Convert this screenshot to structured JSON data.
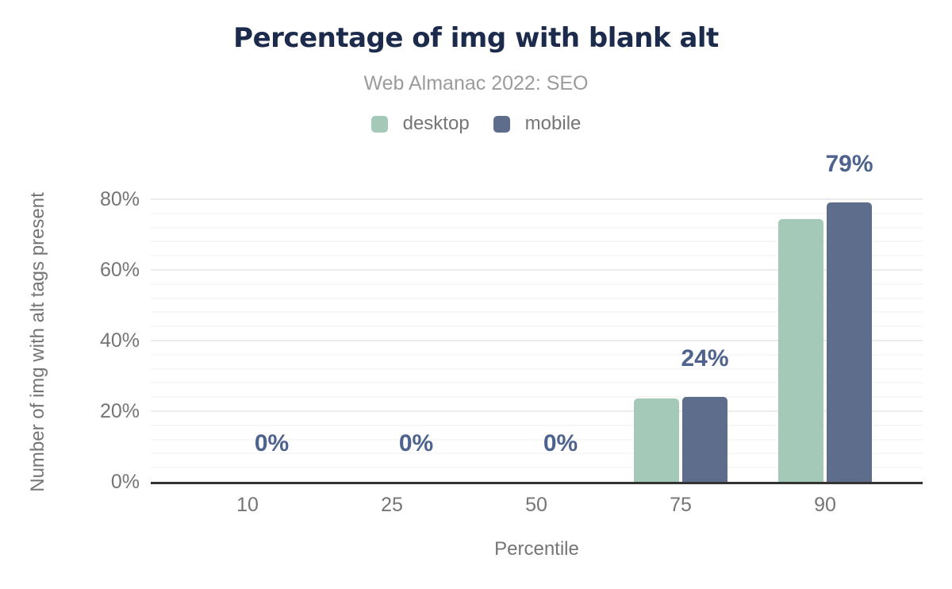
{
  "chart": {
    "title": "Percentage of img with blank alt",
    "subtitle": "Web Almanac 2022: SEO",
    "x_axis_title": "Percentile",
    "y_axis_title": "Number of img with alt tags present"
  },
  "colors": {
    "title": "#1c2a4c",
    "subtitle": "#9b9b9b",
    "axis_text": "#757575",
    "desktop": "#a5c9b8",
    "mobile": "#5e6d8b",
    "data_label": "#4d628c",
    "axis_line": "#333333",
    "grid_major": "#ececec",
    "grid_minor": "#f7f7f7",
    "background": "#ffffff"
  },
  "chart_data": {
    "type": "bar",
    "title": "Percentage of img with blank alt",
    "subtitle": "Web Almanac 2022: SEO",
    "categories": [
      "10",
      "25",
      "50",
      "75",
      "90"
    ],
    "series": [
      {
        "name": "desktop",
        "color": "#a5c9b8",
        "values": [
          0,
          0,
          0,
          23.5,
          74.5
        ]
      },
      {
        "name": "mobile",
        "color": "#5e6d8b",
        "values": [
          0,
          0,
          0,
          24,
          79
        ]
      }
    ],
    "data_labels": [
      "0%",
      "0%",
      "0%",
      "24%",
      "79%"
    ],
    "data_labels_follow_series": "mobile",
    "xlabel": "Percentile",
    "ylabel": "Number of img with alt tags present",
    "y_ticks": [
      {
        "value": 0,
        "label": "0%"
      },
      {
        "value": 20,
        "label": "20%"
      },
      {
        "value": 40,
        "label": "40%"
      },
      {
        "value": 60,
        "label": "60%"
      },
      {
        "value": 80,
        "label": "80%"
      }
    ],
    "ylim": [
      0,
      86
    ],
    "grid": true,
    "minor_grid_step_pct": 4,
    "major_grid_step_pct": 20,
    "legend_position": "top"
  }
}
